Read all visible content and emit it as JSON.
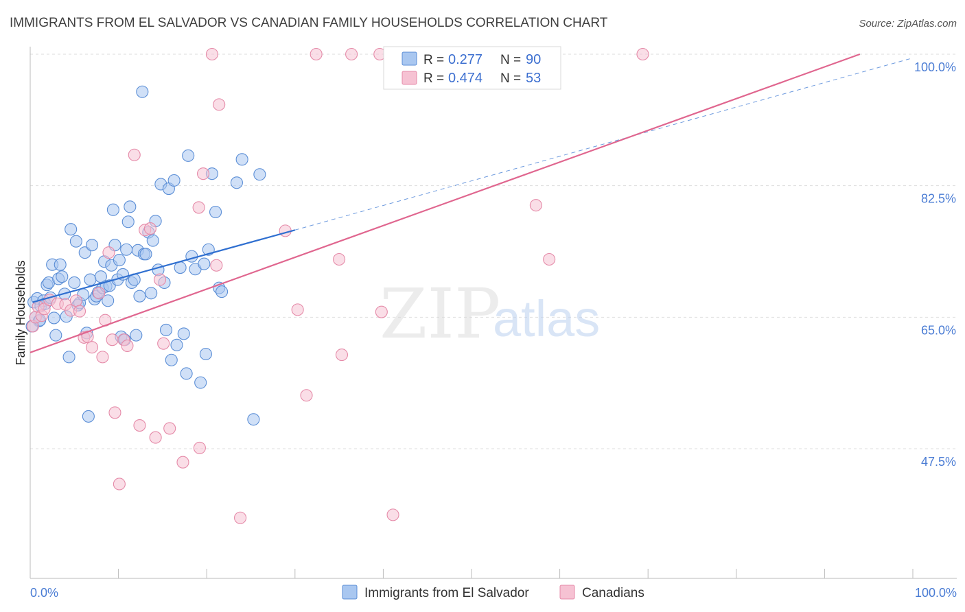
{
  "title": "IMMIGRANTS FROM EL SALVADOR VS CANADIAN FAMILY HOUSEHOLDS CORRELATION CHART",
  "source": "Source: ZipAtlas.com",
  "watermark": {
    "zip": "ZIP",
    "atlas": "atlas"
  },
  "legend_box": {
    "rows": [
      {
        "r_label": "R = ",
        "r_value": "0.277",
        "n_label": "N = ",
        "n_value": "90"
      },
      {
        "r_label": "R = ",
        "r_value": "0.474",
        "n_label": "N = ",
        "n_value": "53"
      }
    ]
  },
  "bottom_legend": {
    "items": [
      {
        "label": "Immigrants from El Salvador"
      },
      {
        "label": "Canadians"
      }
    ]
  },
  "colors": {
    "blue_fill": "#a9c7f0",
    "blue_stroke": "#5b8ed6",
    "blue_line": "#2f6fd0",
    "pink_fill": "#f6c2d3",
    "pink_stroke": "#e58aa8",
    "pink_line": "#e0668f"
  },
  "chart_data": {
    "type": "scatter",
    "title": "IMMIGRANTS FROM EL SALVADOR VS CANADIAN FAMILY HOUSEHOLDS CORRELATION CHART",
    "xlabel": "",
    "ylabel": "Family Households",
    "x_tick_labels": [
      "0.0%",
      "100.0%"
    ],
    "y_tick_labels": [
      "100.0%",
      "82.5%",
      "65.0%",
      "47.5%"
    ],
    "y_ticks": [
      100.0,
      82.5,
      65.0,
      47.5
    ],
    "xlim": [
      0,
      100
    ],
    "ylim": [
      30.6,
      102
    ],
    "grid": true,
    "series": [
      {
        "name": "Immigrants from El Salvador",
        "r": 0.277,
        "n": 90,
        "trend": {
          "x0": 0.3,
          "y0": 67.0,
          "x1": 30.0,
          "y1": 76.6,
          "dashed_to_x": 100.0,
          "dashed_to_y": 99.5
        },
        "points": [
          [
            0.4,
            67.0
          ],
          [
            0.6,
            65.0
          ],
          [
            0.8,
            67.5
          ],
          [
            1.0,
            64.5
          ],
          [
            1.2,
            66.5
          ],
          [
            1.5,
            67.2
          ],
          [
            1.7,
            66.8
          ],
          [
            1.9,
            69.3
          ],
          [
            2.1,
            69.6
          ],
          [
            2.3,
            67.6
          ],
          [
            2.5,
            72.0
          ],
          [
            2.7,
            64.9
          ],
          [
            2.9,
            62.6
          ],
          [
            3.2,
            70.1
          ],
          [
            3.4,
            72.0
          ],
          [
            3.6,
            70.4
          ],
          [
            3.9,
            68.1
          ],
          [
            4.1,
            65.1
          ],
          [
            4.4,
            59.7
          ],
          [
            4.6,
            76.7
          ],
          [
            5.0,
            69.6
          ],
          [
            5.2,
            75.1
          ],
          [
            5.4,
            66.6
          ],
          [
            5.6,
            66.9
          ],
          [
            6.0,
            68.0
          ],
          [
            6.2,
            73.6
          ],
          [
            6.4,
            62.9
          ],
          [
            6.6,
            51.8
          ],
          [
            6.8,
            70.0
          ],
          [
            7.0,
            74.6
          ],
          [
            7.3,
            67.4
          ],
          [
            7.5,
            67.8
          ],
          [
            7.7,
            68.3
          ],
          [
            8.0,
            70.4
          ],
          [
            8.2,
            68.9
          ],
          [
            8.4,
            72.4
          ],
          [
            8.6,
            69.1
          ],
          [
            8.8,
            67.2
          ],
          [
            9.0,
            69.2
          ],
          [
            9.2,
            71.9
          ],
          [
            9.4,
            79.3
          ],
          [
            9.6,
            74.6
          ],
          [
            9.9,
            70.0
          ],
          [
            10.1,
            72.6
          ],
          [
            10.3,
            62.4
          ],
          [
            10.5,
            70.7
          ],
          [
            10.7,
            62.0
          ],
          [
            10.9,
            74.0
          ],
          [
            11.1,
            77.7
          ],
          [
            11.3,
            79.7
          ],
          [
            11.5,
            69.6
          ],
          [
            11.8,
            70.0
          ],
          [
            12.0,
            62.6
          ],
          [
            12.2,
            73.9
          ],
          [
            12.4,
            67.8
          ],
          [
            12.7,
            95.0
          ],
          [
            12.9,
            73.4
          ],
          [
            13.1,
            73.4
          ],
          [
            13.4,
            76.3
          ],
          [
            13.7,
            68.2
          ],
          [
            13.9,
            75.2
          ],
          [
            14.2,
            77.8
          ],
          [
            14.5,
            71.3
          ],
          [
            14.8,
            82.7
          ],
          [
            15.2,
            69.6
          ],
          [
            15.4,
            63.3
          ],
          [
            15.7,
            82.1
          ],
          [
            16.0,
            59.3
          ],
          [
            16.3,
            83.2
          ],
          [
            16.6,
            61.3
          ],
          [
            17.0,
            71.6
          ],
          [
            17.4,
            62.8
          ],
          [
            17.7,
            57.5
          ],
          [
            17.9,
            86.5
          ],
          [
            18.3,
            73.1
          ],
          [
            18.7,
            71.4
          ],
          [
            19.3,
            56.3
          ],
          [
            19.7,
            72.1
          ],
          [
            19.9,
            60.1
          ],
          [
            20.2,
            74.0
          ],
          [
            20.6,
            84.1
          ],
          [
            21.0,
            79.0
          ],
          [
            21.4,
            68.9
          ],
          [
            21.7,
            68.4
          ],
          [
            23.4,
            82.9
          ],
          [
            24.0,
            86.0
          ],
          [
            25.3,
            51.4
          ],
          [
            26.0,
            84.0
          ],
          [
            0.2,
            63.8
          ],
          [
            1.1,
            64.6
          ]
        ]
      },
      {
        "name": "Canadians",
        "r": 0.474,
        "n": 53,
        "trend": {
          "x0": 0.0,
          "y0": 60.3,
          "x1": 94.0,
          "y1": 100.0
        },
        "points": [
          [
            0.3,
            63.8
          ],
          [
            0.6,
            65.0
          ],
          [
            0.9,
            66.4
          ],
          [
            1.3,
            65.2
          ],
          [
            1.6,
            66.1
          ],
          [
            2.2,
            67.3
          ],
          [
            3.1,
            66.8
          ],
          [
            4.0,
            66.7
          ],
          [
            4.6,
            65.9
          ],
          [
            5.2,
            67.2
          ],
          [
            5.6,
            65.8
          ],
          [
            6.1,
            62.3
          ],
          [
            6.5,
            62.4
          ],
          [
            7.0,
            61.0
          ],
          [
            7.8,
            68.2
          ],
          [
            8.2,
            59.7
          ],
          [
            8.5,
            64.6
          ],
          [
            8.9,
            73.6
          ],
          [
            9.3,
            62.0
          ],
          [
            9.6,
            52.3
          ],
          [
            10.1,
            42.8
          ],
          [
            10.6,
            62.0
          ],
          [
            11.0,
            61.2
          ],
          [
            11.8,
            86.6
          ],
          [
            12.4,
            50.6
          ],
          [
            13.0,
            76.6
          ],
          [
            13.6,
            76.8
          ],
          [
            14.2,
            49.0
          ],
          [
            14.7,
            70.0
          ],
          [
            15.1,
            61.5
          ],
          [
            15.8,
            50.2
          ],
          [
            17.3,
            45.7
          ],
          [
            19.1,
            79.6
          ],
          [
            19.2,
            47.6
          ],
          [
            19.6,
            84.1
          ],
          [
            20.6,
            100.0
          ],
          [
            21.1,
            71.9
          ],
          [
            21.4,
            93.3
          ],
          [
            23.8,
            38.3
          ],
          [
            28.9,
            76.5
          ],
          [
            30.3,
            66.0
          ],
          [
            31.3,
            54.6
          ],
          [
            32.4,
            100.0
          ],
          [
            35.0,
            72.7
          ],
          [
            35.3,
            60.0
          ],
          [
            36.4,
            100.0
          ],
          [
            39.6,
            100.0
          ],
          [
            39.8,
            65.7
          ],
          [
            41.1,
            38.7
          ],
          [
            56.8,
            100.0
          ],
          [
            57.3,
            79.9
          ],
          [
            58.8,
            72.7
          ],
          [
            69.4,
            100.0
          ]
        ]
      }
    ]
  }
}
